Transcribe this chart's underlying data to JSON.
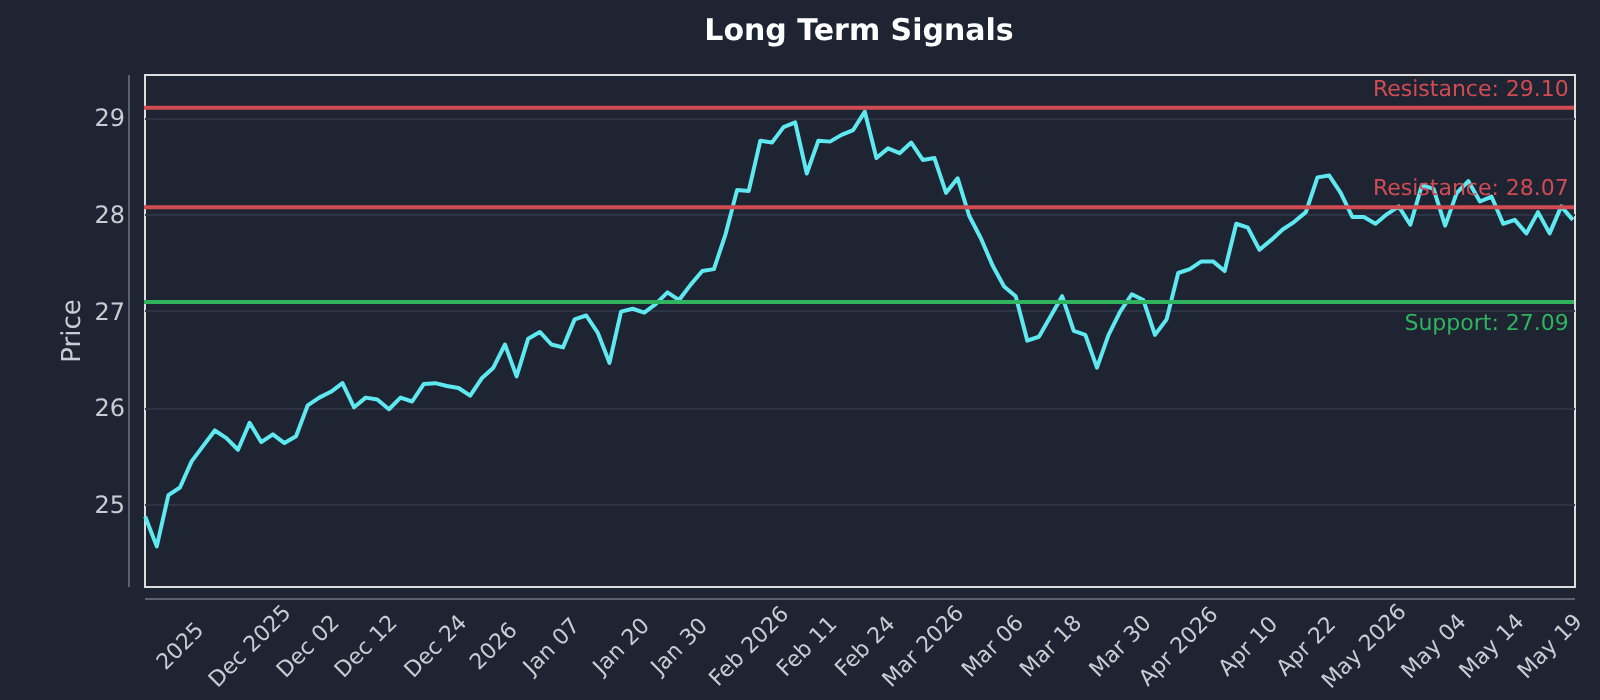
{
  "chart_data": {
    "type": "line",
    "title": "Long Term Signals",
    "ylabel": "Price",
    "categories": [
      null,
      null,
      null,
      "2025",
      null,
      null,
      null,
      null,
      null,
      "Dec 2025",
      null,
      null,
      null,
      null,
      "Dec 02",
      null,
      null,
      null,
      null,
      "Dec 12",
      null,
      null,
      null,
      null,
      null,
      "Dec 24",
      null,
      null,
      null,
      null,
      "2026",
      null,
      null,
      null,
      null,
      "Jan 07",
      null,
      null,
      null,
      null,
      null,
      "Jan 20",
      null,
      null,
      null,
      null,
      "Jan 30",
      null,
      null,
      null,
      null,
      null,
      "Feb 2026",
      null,
      null,
      null,
      null,
      "Feb 11",
      null,
      null,
      null,
      null,
      "Feb 24",
      null,
      null,
      null,
      null,
      "Mar 2026",
      null,
      null,
      null,
      null,
      null,
      "Mar 06",
      null,
      null,
      null,
      null,
      "Mar 18",
      null,
      null,
      null,
      null,
      null,
      "Mar 30",
      null,
      null,
      null,
      null,
      "Apr 2026",
      null,
      null,
      null,
      null,
      null,
      "Apr 10",
      null,
      null,
      null,
      null,
      "Apr 22",
      null,
      null,
      null,
      null,
      "May 2026",
      null,
      null,
      null,
      null,
      null,
      "May 04",
      null,
      null,
      null,
      null,
      "May 14",
      null,
      null,
      null,
      null,
      "May 19",
      null,
      null
    ],
    "series": [
      {
        "color": "#5ee8f0",
        "values": [
          24.87,
          24.56,
          25.09,
          25.17,
          25.44,
          25.6,
          25.76,
          25.68,
          25.56,
          25.84,
          25.64,
          25.72,
          25.63,
          25.7,
          26.02,
          26.1,
          26.16,
          26.25,
          26.0,
          26.1,
          26.08,
          25.98,
          26.1,
          26.06,
          26.24,
          26.25,
          26.22,
          26.2,
          26.12,
          26.3,
          26.41,
          26.65,
          26.32,
          26.71,
          26.78,
          26.65,
          26.62,
          26.91,
          26.95,
          26.77,
          26.46,
          26.99,
          27.02,
          26.98,
          27.07,
          27.19,
          27.11,
          27.27,
          27.41,
          27.43,
          27.79,
          28.25,
          28.24,
          28.76,
          28.74,
          28.9,
          28.95,
          28.42,
          28.76,
          28.75,
          28.82,
          28.87,
          29.06,
          28.58,
          28.68,
          28.63,
          28.74,
          28.56,
          28.58,
          28.22,
          28.37,
          27.98,
          27.75,
          27.47,
          27.25,
          27.15,
          26.69,
          26.73,
          26.94,
          27.15,
          26.79,
          26.75,
          26.41,
          26.75,
          26.99,
          27.17,
          27.11,
          26.75,
          26.91,
          27.39,
          27.43,
          27.51,
          27.51,
          27.41,
          27.9,
          27.86,
          27.63,
          27.73,
          27.84,
          27.92,
          28.02,
          28.38,
          28.4,
          28.22,
          27.97,
          27.97,
          27.9,
          28.0,
          28.08,
          27.89,
          28.3,
          28.26,
          27.88,
          28.22,
          28.34,
          28.13,
          28.18,
          27.9,
          27.94,
          27.8,
          28.02,
          27.8,
          28.08,
          27.94
        ]
      }
    ],
    "ylim": [
      24.15,
      29.45
    ],
    "yticks": [
      25,
      26,
      27,
      28,
      29
    ],
    "grid": "y",
    "ref_lines": [
      {
        "axis": "y",
        "value": 29.1,
        "label": "Resistance: 29.10",
        "color": "#d14b52"
      },
      {
        "axis": "y",
        "value": 28.07,
        "label": "Resistance: 28.07",
        "color": "#d14b52"
      },
      {
        "axis": "y",
        "value": 27.09,
        "label": "Support: 27.09",
        "color": "#2fb35f"
      }
    ]
  }
}
